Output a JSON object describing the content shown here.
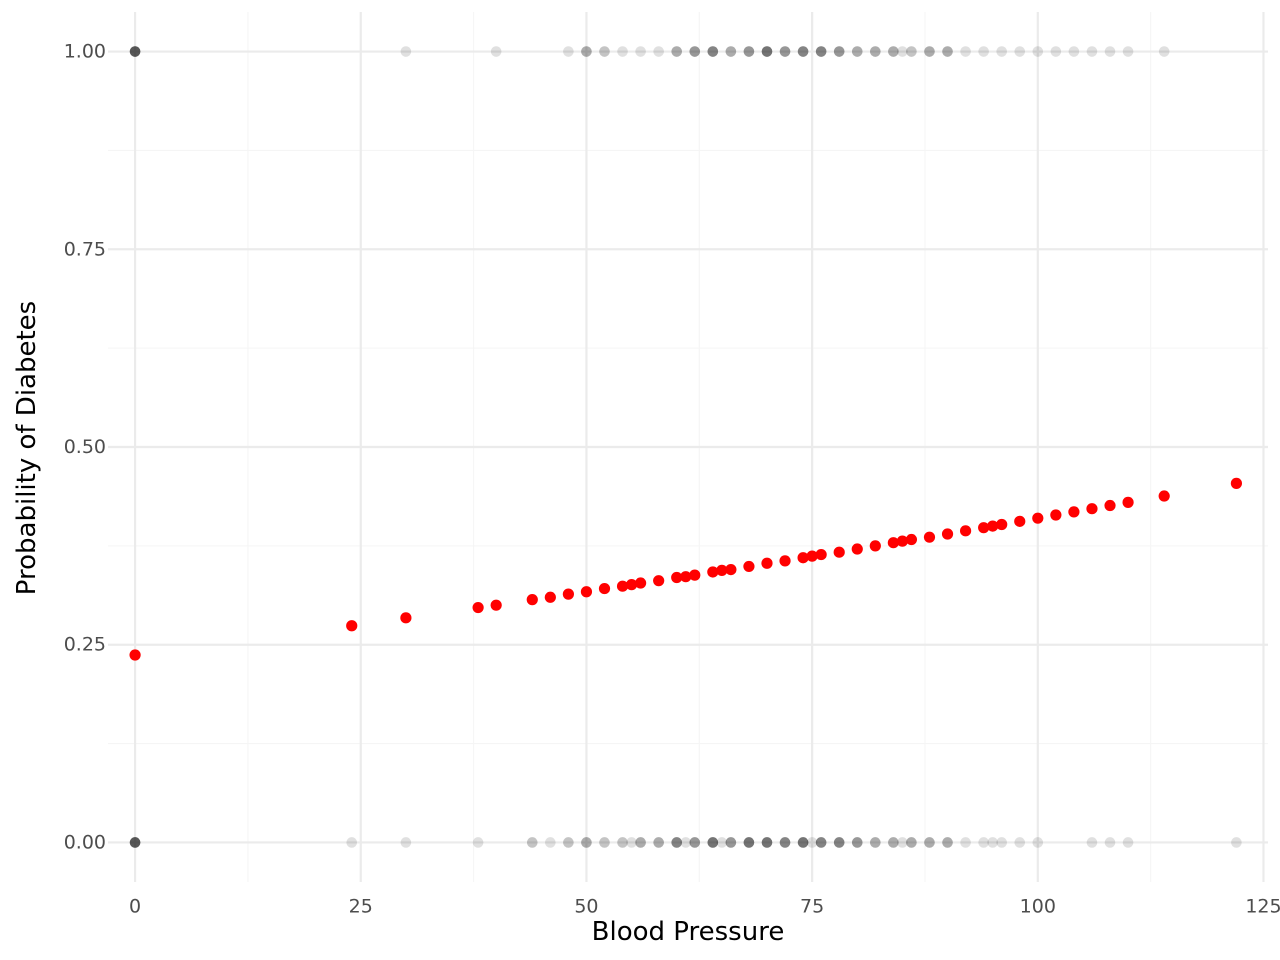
{
  "chart_data": {
    "type": "scatter",
    "xlabel": "Blood Pressure",
    "ylabel": "Probability of Diabetes",
    "xlim": [
      -3,
      125.5
    ],
    "ylim": [
      -0.05,
      1.05
    ],
    "x_ticks": [
      0,
      25,
      50,
      75,
      100,
      125
    ],
    "x_tick_labels": [
      "0",
      "25",
      "50",
      "75",
      "100",
      "125"
    ],
    "y_ticks": [
      0,
      0.25,
      0.5,
      0.75,
      1.0
    ],
    "y_tick_labels": [
      "0.00",
      "0.25",
      "0.50",
      "0.75",
      "1.00"
    ],
    "grid": true,
    "legend": "none",
    "series": [
      {
        "role": "observed",
        "color": "#000000",
        "opacity": 0.12,
        "points": [
          [
            0,
            1
          ],
          [
            0,
            1
          ],
          [
            0,
            1
          ],
          [
            0,
            1
          ],
          [
            0,
            1
          ],
          [
            0,
            1
          ],
          [
            0,
            1
          ],
          [
            0,
            1
          ],
          [
            30,
            1
          ],
          [
            40,
            1
          ],
          [
            48,
            1
          ],
          [
            50,
            1
          ],
          [
            50,
            1
          ],
          [
            50,
            1
          ],
          [
            52,
            1
          ],
          [
            52,
            1
          ],
          [
            54,
            1
          ],
          [
            56,
            1
          ],
          [
            58,
            1
          ],
          [
            60,
            1
          ],
          [
            60,
            1
          ],
          [
            60,
            1
          ],
          [
            62,
            1
          ],
          [
            62,
            1
          ],
          [
            62,
            1
          ],
          [
            62,
            1
          ],
          [
            64,
            1
          ],
          [
            64,
            1
          ],
          [
            64,
            1
          ],
          [
            64,
            1
          ],
          [
            64,
            1
          ],
          [
            66,
            1
          ],
          [
            66,
            1
          ],
          [
            66,
            1
          ],
          [
            68,
            1
          ],
          [
            68,
            1
          ],
          [
            68,
            1
          ],
          [
            68,
            1
          ],
          [
            70,
            1
          ],
          [
            70,
            1
          ],
          [
            70,
            1
          ],
          [
            70,
            1
          ],
          [
            70,
            1
          ],
          [
            70,
            1
          ],
          [
            72,
            1
          ],
          [
            72,
            1
          ],
          [
            72,
            1
          ],
          [
            72,
            1
          ],
          [
            74,
            1
          ],
          [
            74,
            1
          ],
          [
            74,
            1
          ],
          [
            74,
            1
          ],
          [
            74,
            1
          ],
          [
            76,
            1
          ],
          [
            76,
            1
          ],
          [
            76,
            1
          ],
          [
            76,
            1
          ],
          [
            76,
            1
          ],
          [
            78,
            1
          ],
          [
            78,
            1
          ],
          [
            78,
            1
          ],
          [
            78,
            1
          ],
          [
            80,
            1
          ],
          [
            80,
            1
          ],
          [
            80,
            1
          ],
          [
            82,
            1
          ],
          [
            82,
            1
          ],
          [
            82,
            1
          ],
          [
            84,
            1
          ],
          [
            84,
            1
          ],
          [
            84,
            1
          ],
          [
            85,
            1
          ],
          [
            86,
            1
          ],
          [
            86,
            1
          ],
          [
            88,
            1
          ],
          [
            88,
            1
          ],
          [
            88,
            1
          ],
          [
            90,
            1
          ],
          [
            90,
            1
          ],
          [
            90,
            1
          ],
          [
            92,
            1
          ],
          [
            94,
            1
          ],
          [
            96,
            1
          ],
          [
            98,
            1
          ],
          [
            100,
            1
          ],
          [
            102,
            1
          ],
          [
            104,
            1
          ],
          [
            106,
            1
          ],
          [
            108,
            1
          ],
          [
            110,
            1
          ],
          [
            114,
            1
          ],
          [
            0,
            0
          ],
          [
            0,
            0
          ],
          [
            0,
            0
          ],
          [
            0,
            0
          ],
          [
            0,
            0
          ],
          [
            0,
            0
          ],
          [
            0,
            0
          ],
          [
            0,
            0
          ],
          [
            24,
            0
          ],
          [
            30,
            0
          ],
          [
            38,
            0
          ],
          [
            44,
            0
          ],
          [
            44,
            0
          ],
          [
            46,
            0
          ],
          [
            48,
            0
          ],
          [
            48,
            0
          ],
          [
            50,
            0
          ],
          [
            50,
            0
          ],
          [
            50,
            0
          ],
          [
            52,
            0
          ],
          [
            52,
            0
          ],
          [
            54,
            0
          ],
          [
            54,
            0
          ],
          [
            55,
            0
          ],
          [
            56,
            0
          ],
          [
            56,
            0
          ],
          [
            56,
            0
          ],
          [
            58,
            0
          ],
          [
            58,
            0
          ],
          [
            58,
            0
          ],
          [
            60,
            0
          ],
          [
            60,
            0
          ],
          [
            60,
            0
          ],
          [
            60,
            0
          ],
          [
            60,
            0
          ],
          [
            61,
            0
          ],
          [
            62,
            0
          ],
          [
            62,
            0
          ],
          [
            62,
            0
          ],
          [
            62,
            0
          ],
          [
            64,
            0
          ],
          [
            64,
            0
          ],
          [
            64,
            0
          ],
          [
            64,
            0
          ],
          [
            64,
            0
          ],
          [
            64,
            0
          ],
          [
            65,
            0
          ],
          [
            66,
            0
          ],
          [
            66,
            0
          ],
          [
            66,
            0
          ],
          [
            66,
            0
          ],
          [
            68,
            0
          ],
          [
            68,
            0
          ],
          [
            68,
            0
          ],
          [
            68,
            0
          ],
          [
            68,
            0
          ],
          [
            68,
            0
          ],
          [
            70,
            0
          ],
          [
            70,
            0
          ],
          [
            70,
            0
          ],
          [
            70,
            0
          ],
          [
            70,
            0
          ],
          [
            70,
            0
          ],
          [
            72,
            0
          ],
          [
            72,
            0
          ],
          [
            72,
            0
          ],
          [
            72,
            0
          ],
          [
            72,
            0
          ],
          [
            74,
            0
          ],
          [
            74,
            0
          ],
          [
            74,
            0
          ],
          [
            74,
            0
          ],
          [
            74,
            0
          ],
          [
            74,
            0
          ],
          [
            75,
            0
          ],
          [
            76,
            0
          ],
          [
            76,
            0
          ],
          [
            76,
            0
          ],
          [
            76,
            0
          ],
          [
            76,
            0
          ],
          [
            78,
            0
          ],
          [
            78,
            0
          ],
          [
            78,
            0
          ],
          [
            78,
            0
          ],
          [
            78,
            0
          ],
          [
            80,
            0
          ],
          [
            80,
            0
          ],
          [
            80,
            0
          ],
          [
            80,
            0
          ],
          [
            82,
            0
          ],
          [
            82,
            0
          ],
          [
            82,
            0
          ],
          [
            84,
            0
          ],
          [
            84,
            0
          ],
          [
            84,
            0
          ],
          [
            85,
            0
          ],
          [
            86,
            0
          ],
          [
            86,
            0
          ],
          [
            86,
            0
          ],
          [
            88,
            0
          ],
          [
            88,
            0
          ],
          [
            88,
            0
          ],
          [
            90,
            0
          ],
          [
            90,
            0
          ],
          [
            90,
            0
          ],
          [
            92,
            0
          ],
          [
            94,
            0
          ],
          [
            95,
            0
          ],
          [
            96,
            0
          ],
          [
            98,
            0
          ],
          [
            100,
            0
          ],
          [
            106,
            0
          ],
          [
            108,
            0
          ],
          [
            110,
            0
          ],
          [
            122,
            0
          ]
        ]
      },
      {
        "role": "predicted",
        "color": "#ff0000",
        "opacity": 1,
        "points": [
          [
            0,
            0.237
          ],
          [
            24,
            0.274
          ],
          [
            30,
            0.284
          ],
          [
            38,
            0.297
          ],
          [
            40,
            0.3
          ],
          [
            44,
            0.307
          ],
          [
            46,
            0.31
          ],
          [
            48,
            0.314
          ],
          [
            50,
            0.317
          ],
          [
            52,
            0.321
          ],
          [
            54,
            0.324
          ],
          [
            55,
            0.326
          ],
          [
            56,
            0.328
          ],
          [
            58,
            0.331
          ],
          [
            60,
            0.335
          ],
          [
            61,
            0.336
          ],
          [
            62,
            0.338
          ],
          [
            64,
            0.342
          ],
          [
            65,
            0.344
          ],
          [
            66,
            0.345
          ],
          [
            68,
            0.349
          ],
          [
            70,
            0.353
          ],
          [
            72,
            0.356
          ],
          [
            74,
            0.36
          ],
          [
            75,
            0.362
          ],
          [
            76,
            0.364
          ],
          [
            78,
            0.367
          ],
          [
            80,
            0.371
          ],
          [
            82,
            0.375
          ],
          [
            84,
            0.379
          ],
          [
            85,
            0.381
          ],
          [
            86,
            0.383
          ],
          [
            88,
            0.386
          ],
          [
            90,
            0.39
          ],
          [
            92,
            0.394
          ],
          [
            94,
            0.398
          ],
          [
            95,
            0.4
          ],
          [
            96,
            0.402
          ],
          [
            98,
            0.406
          ],
          [
            100,
            0.41
          ],
          [
            102,
            0.414
          ],
          [
            104,
            0.418
          ],
          [
            106,
            0.422
          ],
          [
            108,
            0.426
          ],
          [
            110,
            0.43
          ],
          [
            114,
            0.438
          ],
          [
            122,
            0.454
          ]
        ]
      }
    ]
  }
}
